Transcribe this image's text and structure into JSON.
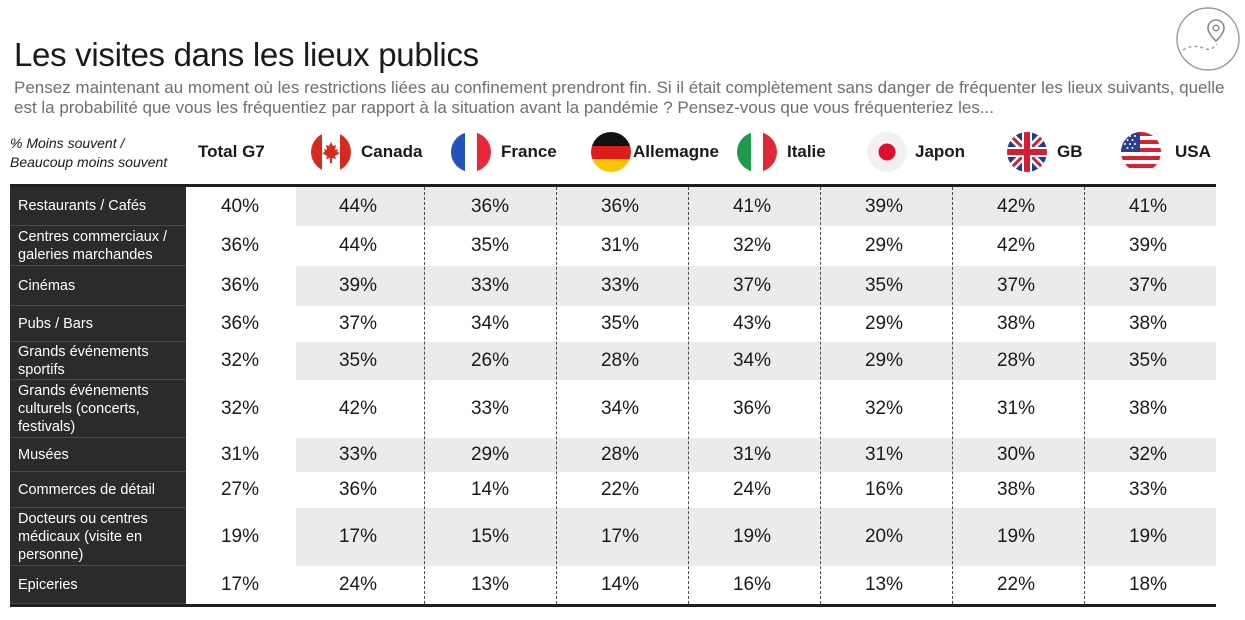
{
  "title": "Les visites dans les lieux publics",
  "subtitle": "Pensez maintenant au moment où les restrictions liées au confinement prendront fin. Si il était complètement sans danger de fréquenter les lieux suivants, quelle est la probabilité que vous les fréquentiez par rapport à la situation avant la pandémie ? Pensez-vous que vous fréquenteriez les...",
  "legend": {
    "line1": "% Moins souvent /",
    "line2": "Beaucoup moins souvent"
  },
  "colors": {
    "label_bg": "#2b2b2b",
    "shade": "#ebebeb",
    "text": "#1a1a1a"
  },
  "chart_data": {
    "type": "table",
    "title": "Les visites dans les lieux publics",
    "columns": [
      "Total G7",
      "Canada",
      "France",
      "Allemagne",
      "Italie",
      "Japon",
      "GB",
      "USA"
    ],
    "rows": [
      {
        "label": "Restaurants / Cafés",
        "values": [
          "40%",
          "44%",
          "36%",
          "36%",
          "41%",
          "39%",
          "42%",
          "41%"
        ]
      },
      {
        "label": "Centres commerciaux / galeries marchandes",
        "values": [
          "36%",
          "44%",
          "35%",
          "31%",
          "32%",
          "29%",
          "42%",
          "39%"
        ]
      },
      {
        "label": "Cinémas",
        "values": [
          "36%",
          "39%",
          "33%",
          "33%",
          "37%",
          "35%",
          "37%",
          "37%"
        ]
      },
      {
        "label": "Pubs / Bars",
        "values": [
          "36%",
          "37%",
          "34%",
          "35%",
          "43%",
          "29%",
          "38%",
          "38%"
        ]
      },
      {
        "label": "Grands événements sportifs",
        "values": [
          "32%",
          "35%",
          "26%",
          "28%",
          "34%",
          "29%",
          "28%",
          "35%"
        ]
      },
      {
        "label": "Grands événements culturels (concerts, festivals)",
        "values": [
          "32%",
          "42%",
          "33%",
          "34%",
          "36%",
          "32%",
          "31%",
          "38%"
        ]
      },
      {
        "label": "Musées",
        "values": [
          "31%",
          "33%",
          "29%",
          "28%",
          "31%",
          "31%",
          "30%",
          "32%"
        ]
      },
      {
        "label": "Commerces de détail",
        "values": [
          "27%",
          "36%",
          "14%",
          "22%",
          "24%",
          "16%",
          "38%",
          "33%"
        ]
      },
      {
        "label": "Docteurs ou centres médicaux (visite en personne)",
        "values": [
          "19%",
          "17%",
          "15%",
          "17%",
          "19%",
          "20%",
          "19%",
          "19%"
        ]
      },
      {
        "label": "Epiceries",
        "values": [
          "17%",
          "24%",
          "13%",
          "14%",
          "16%",
          "13%",
          "22%",
          "18%"
        ]
      }
    ]
  }
}
